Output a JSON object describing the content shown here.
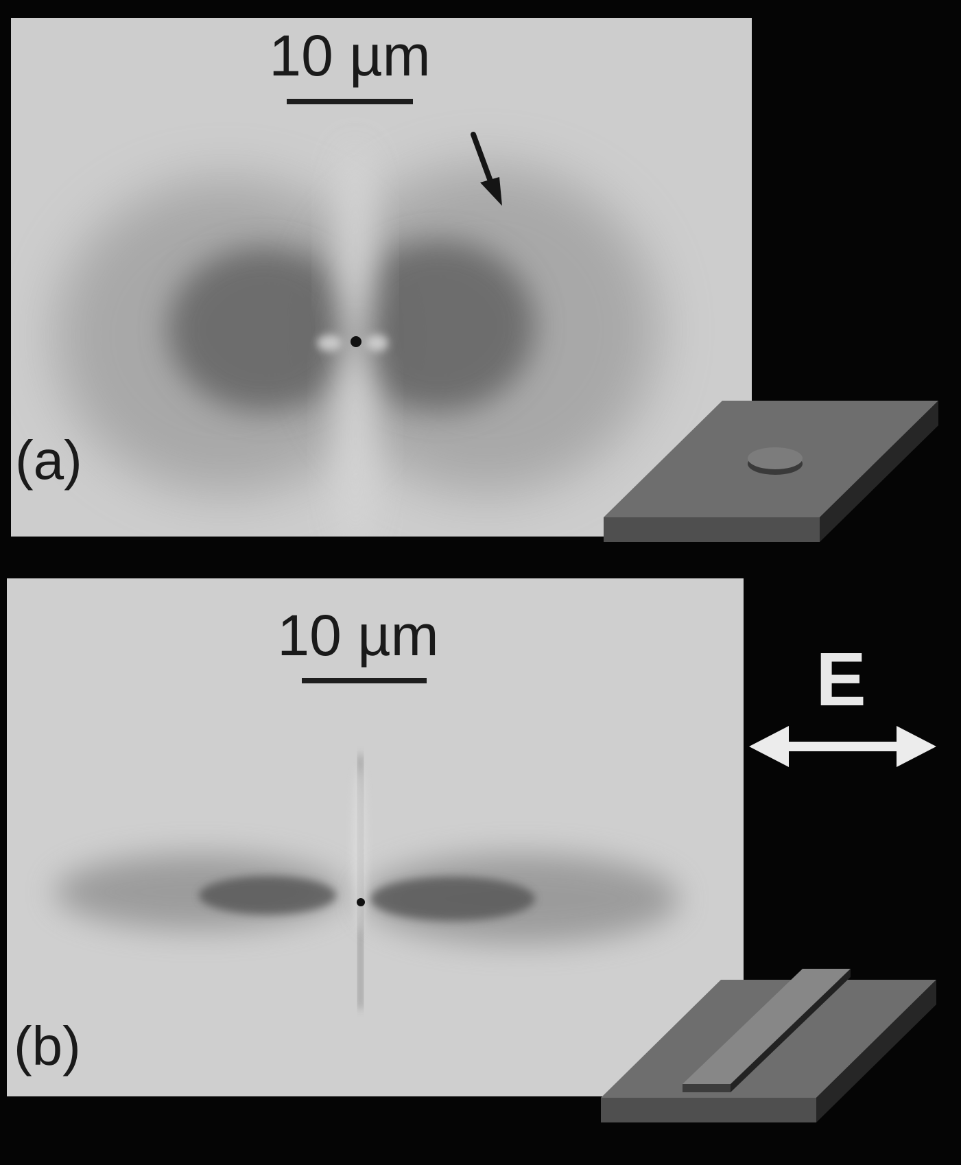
{
  "panel_a": {
    "label": "(a)",
    "scale_bar_text": "10 µm"
  },
  "panel_b": {
    "label": "(b)",
    "scale_bar_text": "10 µm"
  },
  "field_label": "E"
}
